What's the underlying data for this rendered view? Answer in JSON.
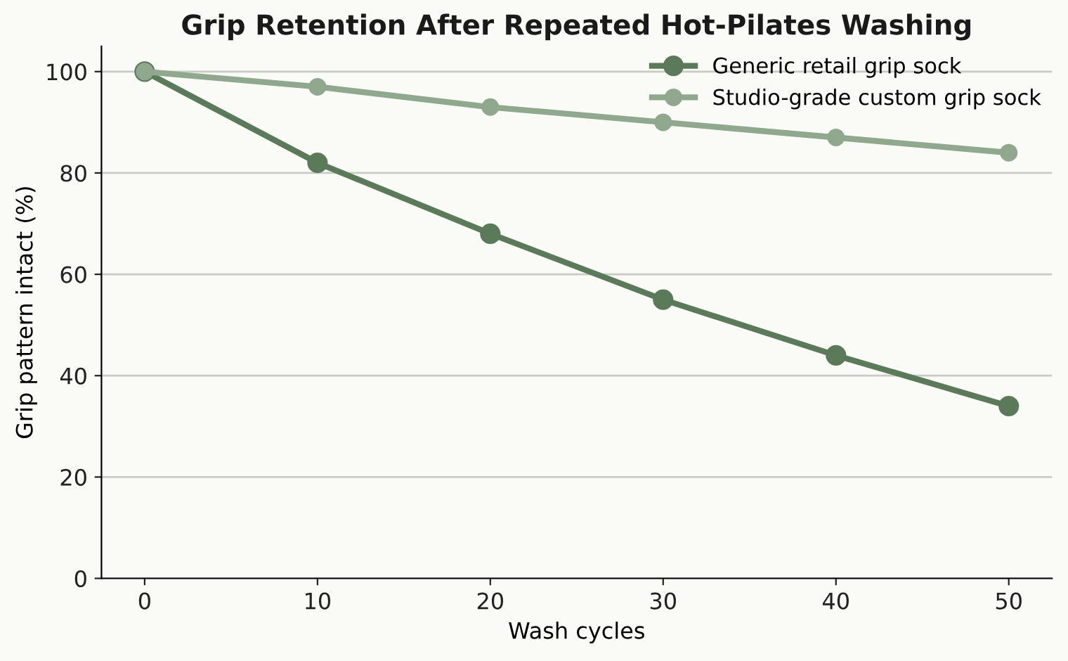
{
  "chart_data": {
    "type": "line",
    "title": "Grip Retention After Repeated Hot-Pilates Washing",
    "xlabel": "Wash cycles",
    "ylabel": "Grip pattern intact (%)",
    "x": [
      0,
      10,
      20,
      30,
      40,
      50
    ],
    "series": [
      {
        "name": "Generic retail grip sock",
        "color": "#5b7a5a",
        "values": [
          100,
          82,
          68,
          55,
          44,
          34
        ]
      },
      {
        "name": "Studio-grade custom grip sock",
        "color": "#8fa88e",
        "values": [
          100,
          97,
          93,
          90,
          87,
          84
        ]
      }
    ],
    "xlim": [
      -2.5,
      52.5
    ],
    "xticks": [
      0,
      10,
      20,
      30,
      40,
      50
    ],
    "ylim": [
      0,
      105
    ],
    "yticks": [
      0,
      20,
      40,
      60,
      80,
      100
    ],
    "grid": "y",
    "legend": "top right",
    "marker": "circle",
    "line_style": "solid"
  }
}
